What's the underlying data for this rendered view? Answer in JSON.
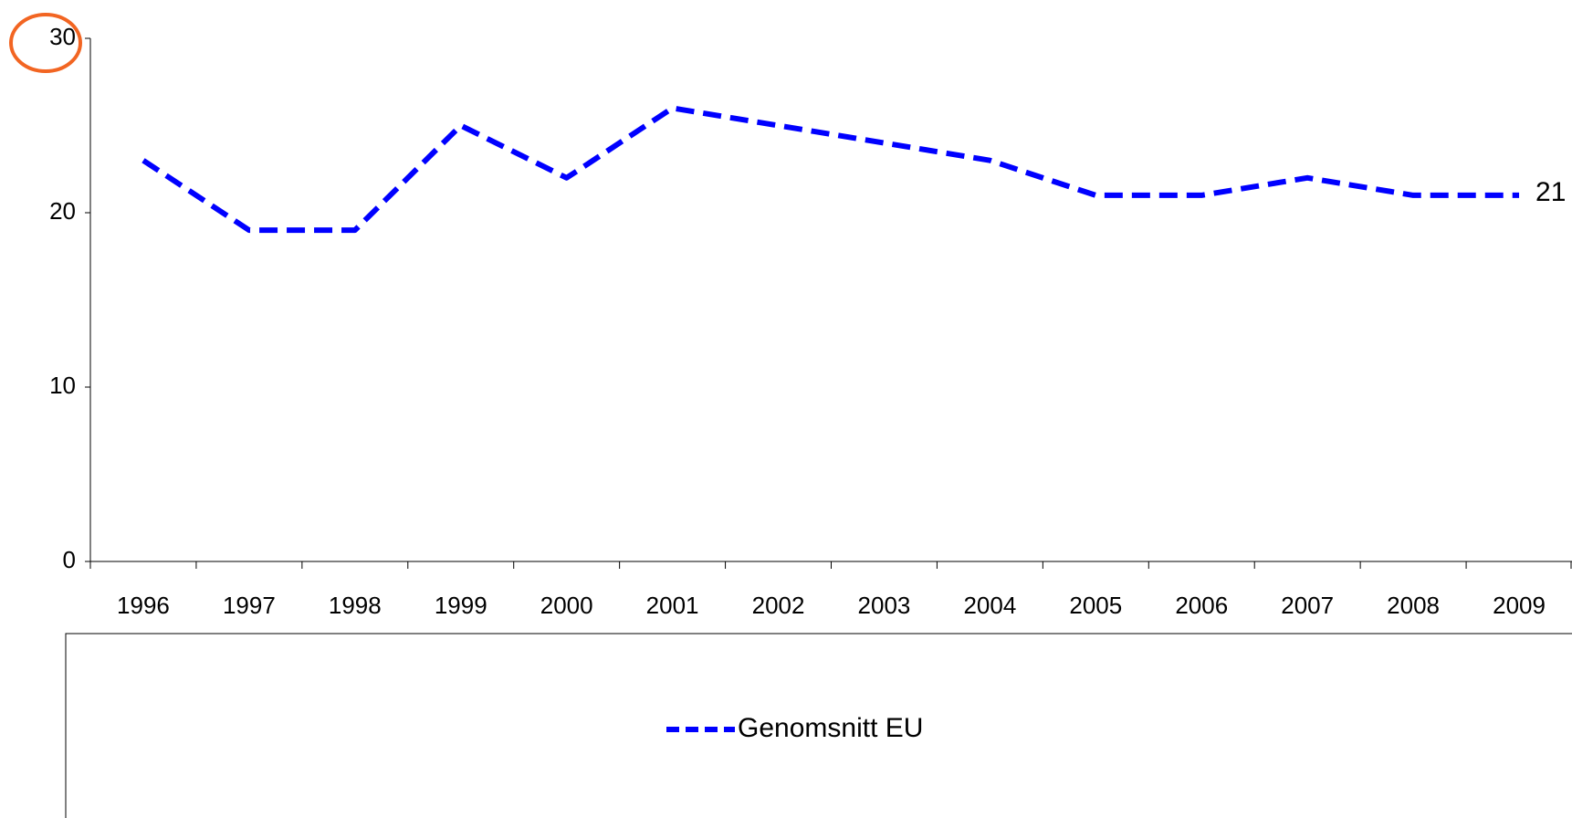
{
  "chart_data": {
    "type": "line",
    "categories": [
      "1996",
      "1997",
      "1998",
      "1999",
      "2000",
      "2001",
      "2002",
      "2003",
      "2004",
      "2005",
      "2006",
      "2007",
      "2008",
      "2009"
    ],
    "series": [
      {
        "name": "Genomsnitt EU",
        "color": "#0000ff",
        "values": [
          23,
          19,
          19,
          25,
          22,
          26,
          25,
          24,
          23,
          21,
          21,
          22,
          21,
          21
        ]
      }
    ],
    "ylim": [
      0,
      30
    ],
    "yticks": [
      0,
      10,
      20,
      30
    ],
    "grid": false,
    "legend": "bottom"
  }
}
